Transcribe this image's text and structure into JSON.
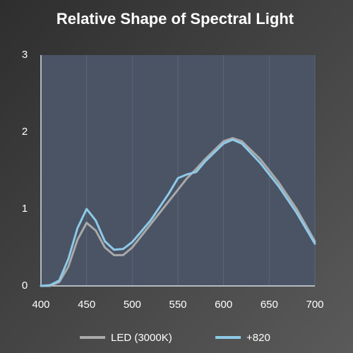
{
  "chart_data": {
    "type": "line",
    "title": "Relative Shape of Spectral Light",
    "x": [
      400,
      410,
      420,
      430,
      440,
      450,
      460,
      470,
      480,
      490,
      500,
      520,
      540,
      550,
      560,
      570,
      580,
      600,
      610,
      620,
      640,
      660,
      680,
      700
    ],
    "series": [
      {
        "name": "LED (3000K)",
        "color": "#a9a9a9",
        "values": [
          0,
          0,
          0.05,
          0.25,
          0.6,
          0.82,
          0.72,
          0.5,
          0.4,
          0.4,
          0.5,
          0.8,
          1.1,
          1.25,
          1.4,
          1.52,
          1.65,
          1.88,
          1.92,
          1.88,
          1.65,
          1.35,
          1.0,
          0.58
        ]
      },
      {
        "name": "+820",
        "color": "#8ec9e8",
        "values": [
          0,
          0.01,
          0.07,
          0.35,
          0.75,
          1.0,
          0.85,
          0.58,
          0.47,
          0.48,
          0.57,
          0.85,
          1.2,
          1.4,
          1.45,
          1.48,
          1.62,
          1.85,
          1.9,
          1.85,
          1.6,
          1.3,
          0.95,
          0.55
        ]
      }
    ],
    "xlim": [
      400,
      700
    ],
    "xticks": [
      400,
      450,
      500,
      550,
      600,
      650,
      700
    ],
    "ylim": [
      0,
      3
    ],
    "yticks": [
      0,
      1,
      2,
      3
    ],
    "grid": true
  }
}
